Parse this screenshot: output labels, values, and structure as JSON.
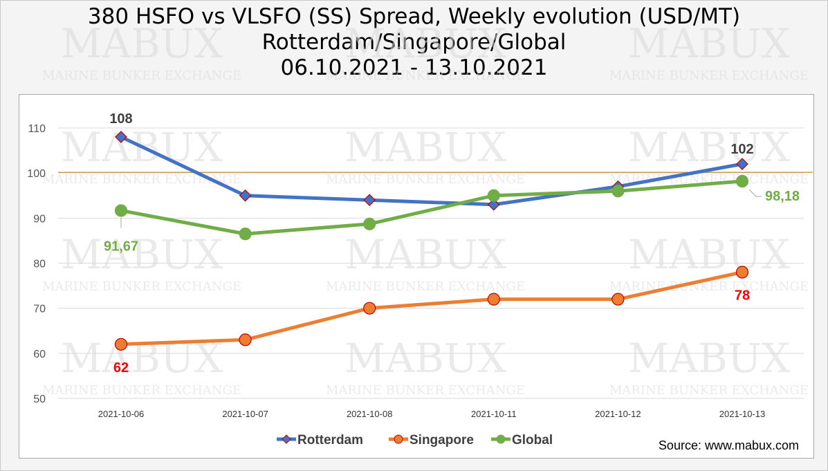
{
  "title_lines": [
    "380 HSFO vs VLSFO (SS) Spread, Weekly evolution (USD/MT)",
    "Rotterdam/Singapore/Global",
    "06.10.2021 - 13.10.2021"
  ],
  "watermark": {
    "brand": "MABUX",
    "tagline": "MARINE BUNKER EXCHANGE"
  },
  "source": "Source: www.mabux.com",
  "chart_data": {
    "type": "line",
    "categories": [
      "2021-10-06",
      "2021-10-07",
      "2021-10-08",
      "2021-10-11",
      "2021-10-12",
      "2021-10-13"
    ],
    "ylim": [
      50,
      110
    ],
    "yticks": [
      "50",
      "60",
      "70",
      "80",
      "90",
      "100",
      "110"
    ],
    "reference_line": 100,
    "legend_position": "bottom",
    "grid": true,
    "series": [
      {
        "name": "Rotterdam",
        "color": "#4472c4",
        "marker": "diamond",
        "values": [
          108,
          95,
          94,
          93,
          97,
          102
        ],
        "labels": [
          {
            "index": 0,
            "text": "108",
            "color": "#404040"
          },
          {
            "index": 5,
            "text": "102",
            "color": "#404040"
          }
        ]
      },
      {
        "name": "Singapore",
        "color": "#ed7d31",
        "marker": "circle",
        "values": [
          62,
          63,
          70,
          72,
          72,
          78
        ],
        "labels": [
          {
            "index": 0,
            "text": "62",
            "color": "#ff0000"
          },
          {
            "index": 5,
            "text": "78",
            "color": "#ff0000"
          }
        ]
      },
      {
        "name": "Global",
        "color": "#70ad47",
        "marker": "circle",
        "values": [
          91.67,
          86.5,
          88.7,
          95,
          96,
          98.18
        ],
        "labels": [
          {
            "index": 0,
            "text": "91,67",
            "color": "#70ad47"
          },
          {
            "index": 5,
            "text": "98,18",
            "color": "#70ad47"
          }
        ]
      }
    ]
  }
}
